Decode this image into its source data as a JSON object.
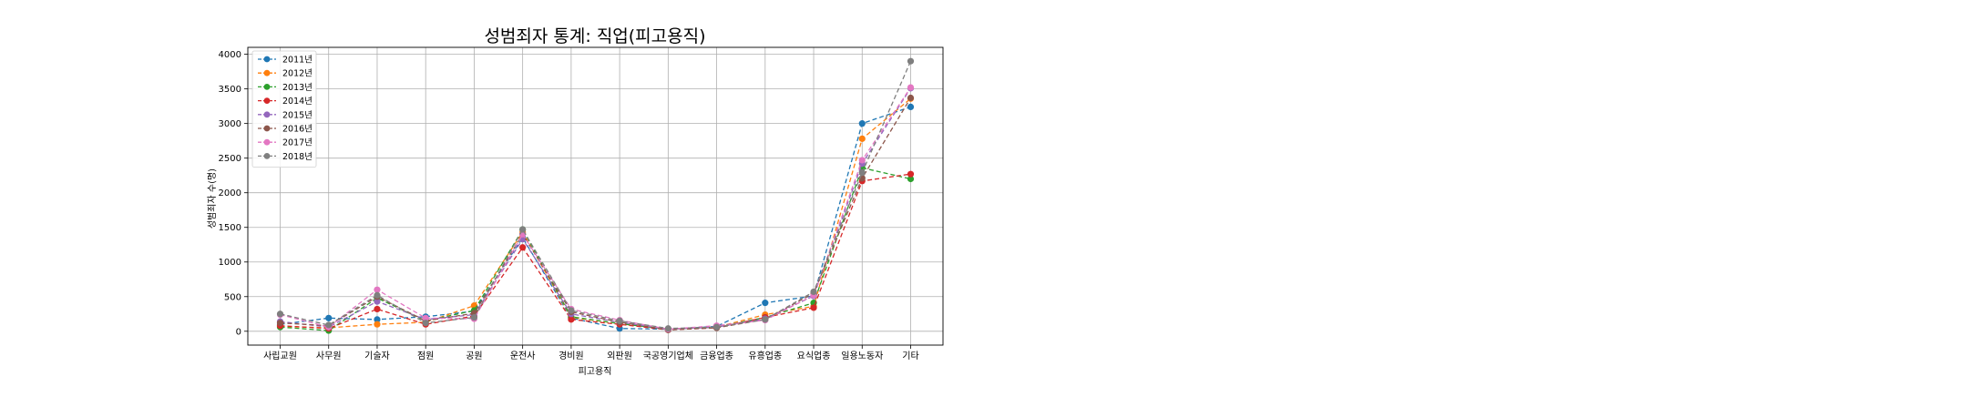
{
  "chart_data": {
    "type": "line",
    "title": "성범죄자 통계: 직업(피고용직)",
    "xlabel": "피고용직",
    "ylabel": "성범죄자 수(명)",
    "ylim": [
      -200,
      4100
    ],
    "yticks": [
      0,
      500,
      1000,
      1500,
      2000,
      2500,
      3000,
      3500,
      4000
    ],
    "grid": true,
    "legend_position": "top-left",
    "categories": [
      "사립교원",
      "사무원",
      "기술자",
      "점원",
      "공원",
      "운전사",
      "경비원",
      "외판원",
      "국공영기업체",
      "금융업종",
      "유흥업종",
      "요식업종",
      "일용노동자",
      "기타"
    ],
    "series": [
      {
        "name": "2011년",
        "color": "#1f77b4",
        "values": [
          100,
          190,
          170,
          210,
          290,
          1350,
          190,
          40,
          30,
          70,
          410,
          510,
          3000,
          3240
        ]
      },
      {
        "name": "2012년",
        "color": "#ff7f0e",
        "values": [
          70,
          50,
          100,
          130,
          370,
          1430,
          200,
          110,
          30,
          60,
          240,
          360,
          2780,
          3360
        ]
      },
      {
        "name": "2013년",
        "color": "#2ca02c",
        "values": [
          60,
          10,
          480,
          150,
          300,
          1470,
          210,
          110,
          30,
          60,
          200,
          410,
          2360,
          2200
        ]
      },
      {
        "name": "2014년",
        "color": "#d62728",
        "values": [
          80,
          40,
          320,
          100,
          220,
          1210,
          170,
          100,
          20,
          50,
          200,
          340,
          2170,
          2270
        ]
      },
      {
        "name": "2015년",
        "color": "#9467bd",
        "values": [
          140,
          60,
          430,
          170,
          240,
          1330,
          250,
          130,
          30,
          60,
          180,
          510,
          2420,
          3510
        ]
      },
      {
        "name": "2016년",
        "color": "#8c564b",
        "values": [
          120,
          80,
          500,
          150,
          260,
          1400,
          280,
          130,
          20,
          50,
          170,
          550,
          2210,
          3370
        ]
      },
      {
        "name": "2017년",
        "color": "#e377c2",
        "values": [
          240,
          60,
          600,
          190,
          180,
          1400,
          320,
          160,
          30,
          80,
          160,
          520,
          2470,
          3520
        ]
      },
      {
        "name": "2018년",
        "color": "#7f7f7f",
        "values": [
          250,
          90,
          520,
          120,
          200,
          1470,
          300,
          150,
          40,
          60,
          170,
          570,
          2290,
          3900
        ]
      }
    ]
  }
}
